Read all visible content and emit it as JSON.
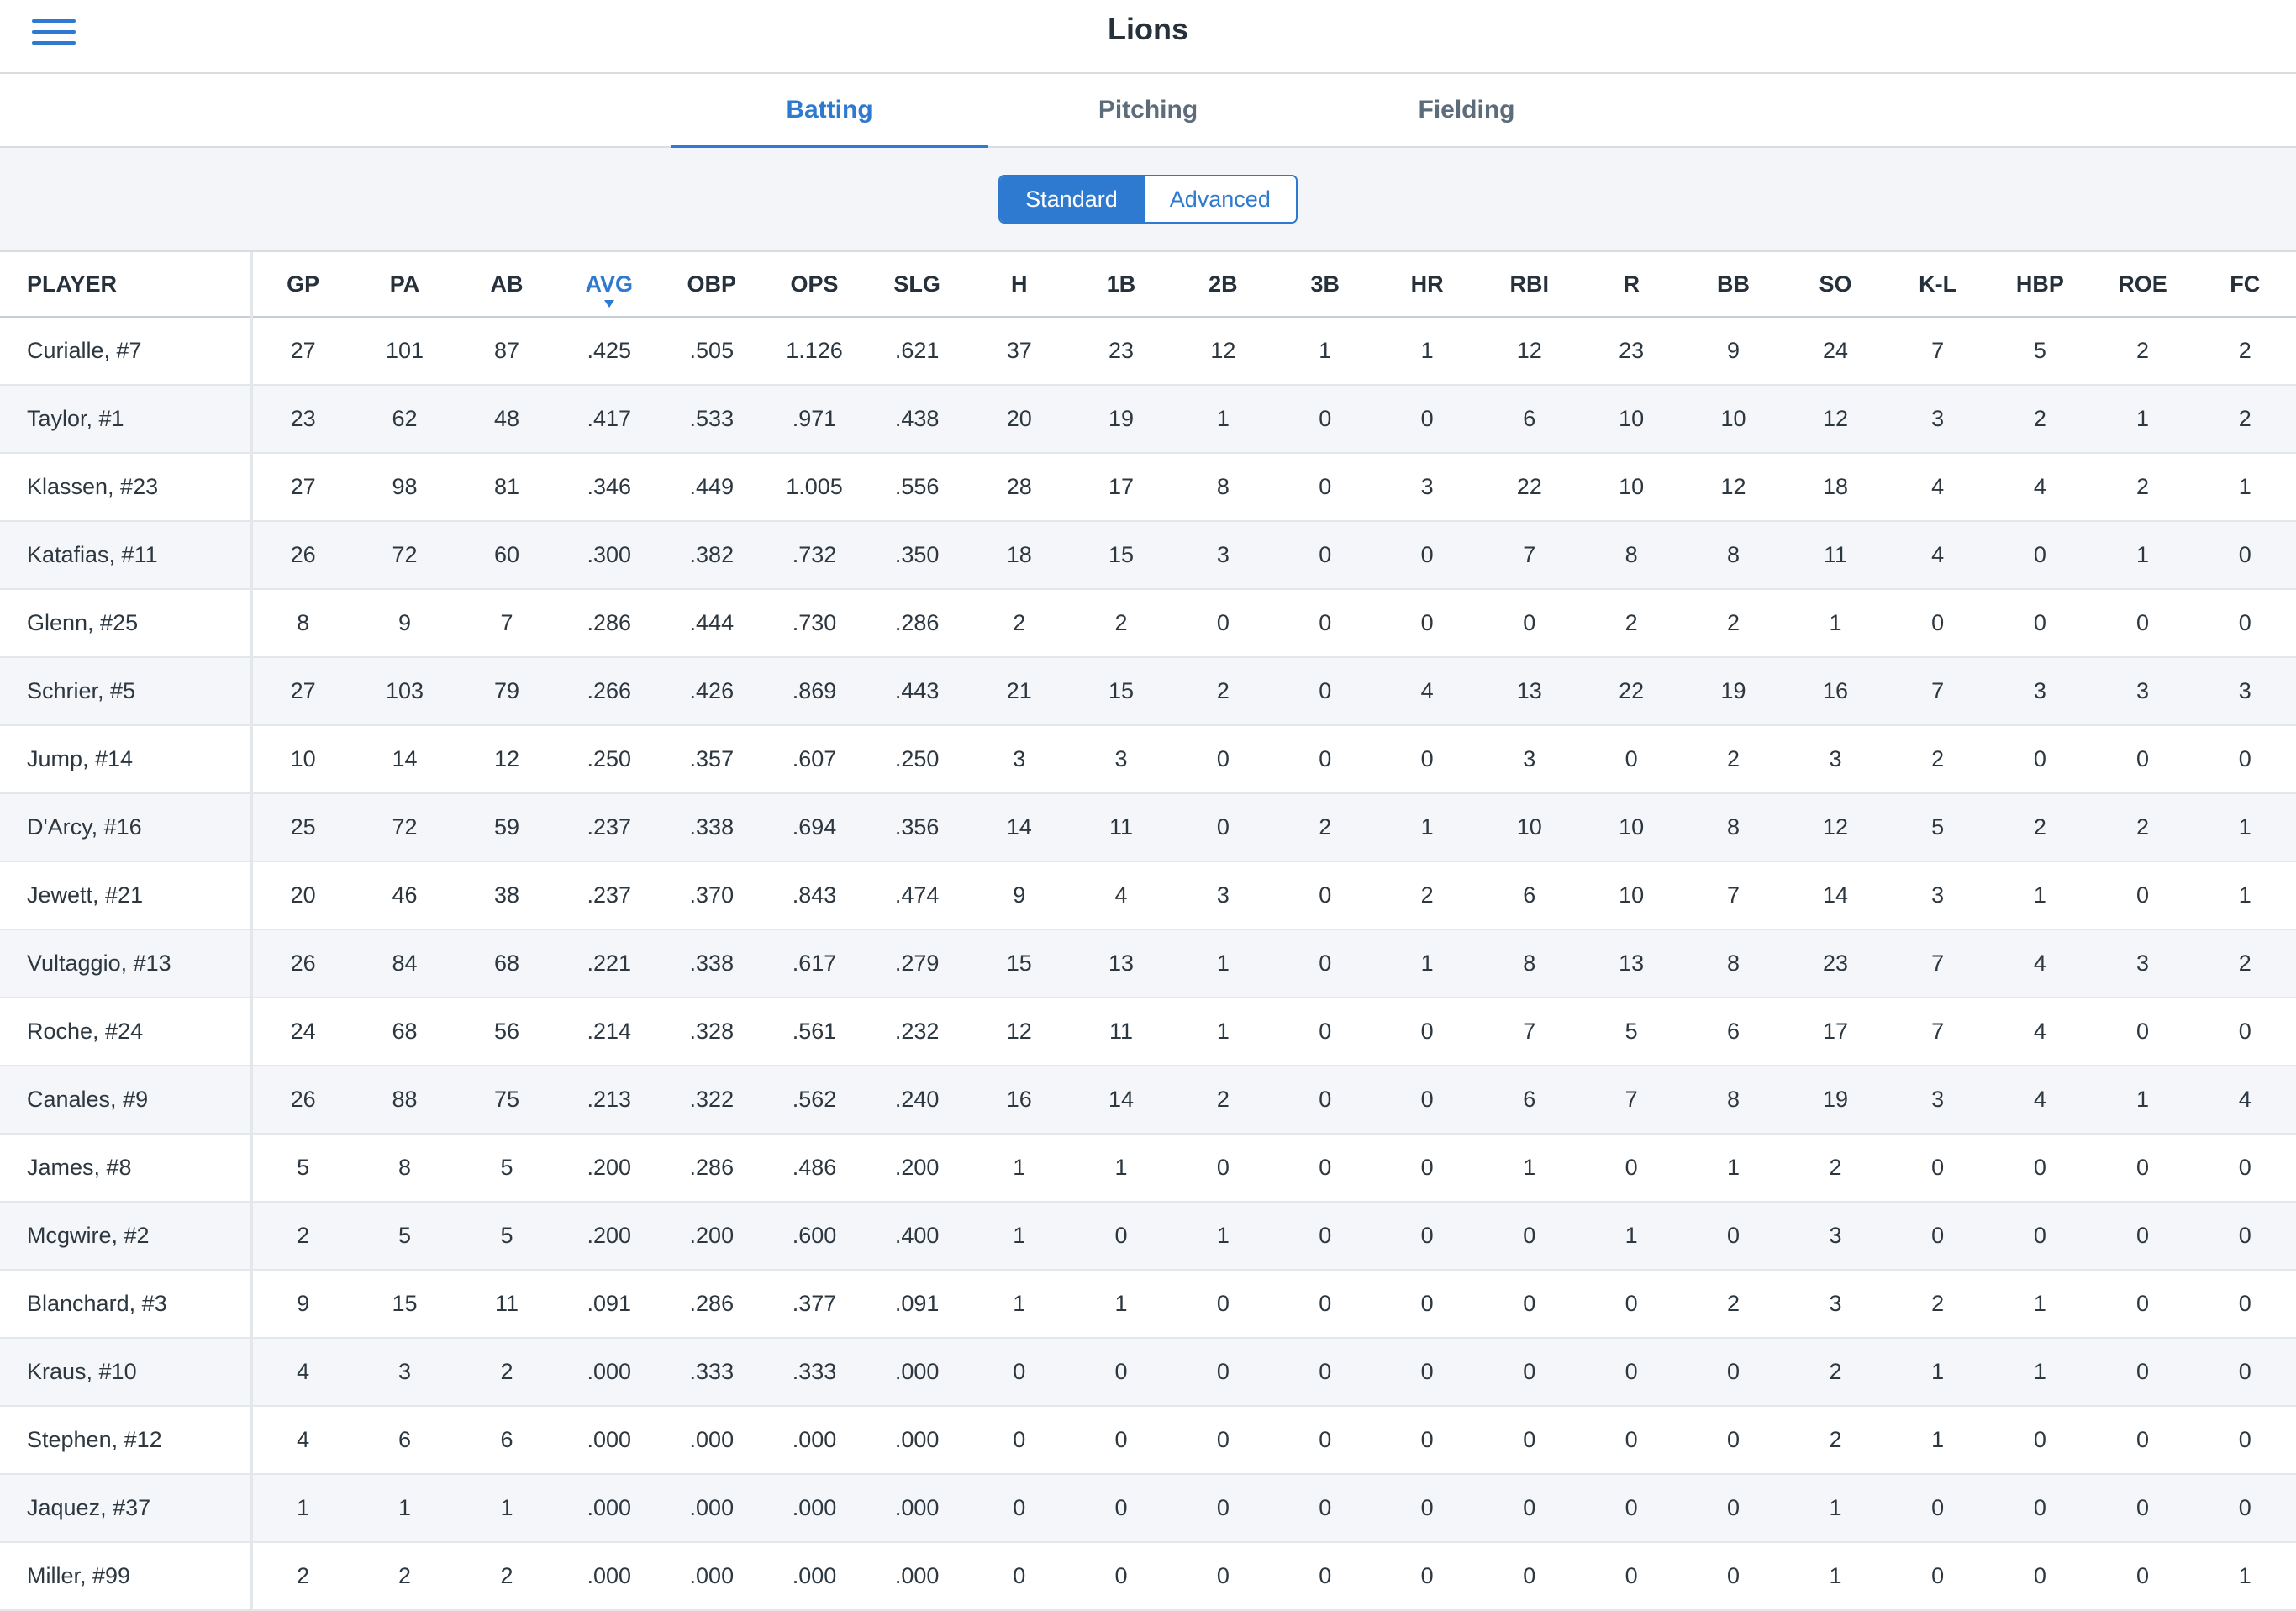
{
  "header": {
    "title": "Lions"
  },
  "tabs": [
    {
      "label": "Batting",
      "active": true
    },
    {
      "label": "Pitching",
      "active": false
    },
    {
      "label": "Fielding",
      "active": false
    }
  ],
  "toggle": {
    "standard": "Standard",
    "advanced": "Advanced",
    "selected": "Standard"
  },
  "colors": {
    "accent": "#2f7ad1",
    "header_text": "#26313b",
    "row_alt": "#f4f6f9"
  },
  "table": {
    "sorted_column": "AVG",
    "columns": [
      "PLAYER",
      "GP",
      "PA",
      "AB",
      "AVG",
      "OBP",
      "OPS",
      "SLG",
      "H",
      "1B",
      "2B",
      "3B",
      "HR",
      "RBI",
      "R",
      "BB",
      "SO",
      "K-L",
      "HBP",
      "ROE",
      "FC"
    ],
    "rows": [
      [
        "Curialle, #7",
        "27",
        "101",
        "87",
        ".425",
        ".505",
        "1.126",
        ".621",
        "37",
        "23",
        "12",
        "1",
        "1",
        "12",
        "23",
        "9",
        "24",
        "7",
        "5",
        "2",
        "2"
      ],
      [
        "Taylor, #1",
        "23",
        "62",
        "48",
        ".417",
        ".533",
        ".971",
        ".438",
        "20",
        "19",
        "1",
        "0",
        "0",
        "6",
        "10",
        "10",
        "12",
        "3",
        "2",
        "1",
        "2"
      ],
      [
        "Klassen, #23",
        "27",
        "98",
        "81",
        ".346",
        ".449",
        "1.005",
        ".556",
        "28",
        "17",
        "8",
        "0",
        "3",
        "22",
        "10",
        "12",
        "18",
        "4",
        "4",
        "2",
        "1"
      ],
      [
        "Katafias, #11",
        "26",
        "72",
        "60",
        ".300",
        ".382",
        ".732",
        ".350",
        "18",
        "15",
        "3",
        "0",
        "0",
        "7",
        "8",
        "8",
        "11",
        "4",
        "0",
        "1",
        "0"
      ],
      [
        "Glenn, #25",
        "8",
        "9",
        "7",
        ".286",
        ".444",
        ".730",
        ".286",
        "2",
        "2",
        "0",
        "0",
        "0",
        "0",
        "2",
        "2",
        "1",
        "0",
        "0",
        "0",
        "0"
      ],
      [
        "Schrier, #5",
        "27",
        "103",
        "79",
        ".266",
        ".426",
        ".869",
        ".443",
        "21",
        "15",
        "2",
        "0",
        "4",
        "13",
        "22",
        "19",
        "16",
        "7",
        "3",
        "3",
        "3"
      ],
      [
        "Jump, #14",
        "10",
        "14",
        "12",
        ".250",
        ".357",
        ".607",
        ".250",
        "3",
        "3",
        "0",
        "0",
        "0",
        "3",
        "0",
        "2",
        "3",
        "2",
        "0",
        "0",
        "0"
      ],
      [
        "D'Arcy, #16",
        "25",
        "72",
        "59",
        ".237",
        ".338",
        ".694",
        ".356",
        "14",
        "11",
        "0",
        "2",
        "1",
        "10",
        "10",
        "8",
        "12",
        "5",
        "2",
        "2",
        "1"
      ],
      [
        "Jewett, #21",
        "20",
        "46",
        "38",
        ".237",
        ".370",
        ".843",
        ".474",
        "9",
        "4",
        "3",
        "0",
        "2",
        "6",
        "10",
        "7",
        "14",
        "3",
        "1",
        "0",
        "1"
      ],
      [
        "Vultaggio, #13",
        "26",
        "84",
        "68",
        ".221",
        ".338",
        ".617",
        ".279",
        "15",
        "13",
        "1",
        "0",
        "1",
        "8",
        "13",
        "8",
        "23",
        "7",
        "4",
        "3",
        "2"
      ],
      [
        "Roche, #24",
        "24",
        "68",
        "56",
        ".214",
        ".328",
        ".561",
        ".232",
        "12",
        "11",
        "1",
        "0",
        "0",
        "7",
        "5",
        "6",
        "17",
        "7",
        "4",
        "0",
        "0"
      ],
      [
        "Canales, #9",
        "26",
        "88",
        "75",
        ".213",
        ".322",
        ".562",
        ".240",
        "16",
        "14",
        "2",
        "0",
        "0",
        "6",
        "7",
        "8",
        "19",
        "3",
        "4",
        "1",
        "4"
      ],
      [
        "James, #8",
        "5",
        "8",
        "5",
        ".200",
        ".286",
        ".486",
        ".200",
        "1",
        "1",
        "0",
        "0",
        "0",
        "1",
        "0",
        "1",
        "2",
        "0",
        "0",
        "0",
        "0"
      ],
      [
        "Mcgwire, #2",
        "2",
        "5",
        "5",
        ".200",
        ".200",
        ".600",
        ".400",
        "1",
        "0",
        "1",
        "0",
        "0",
        "0",
        "1",
        "0",
        "3",
        "0",
        "0",
        "0",
        "0"
      ],
      [
        "Blanchard, #3",
        "9",
        "15",
        "11",
        ".091",
        ".286",
        ".377",
        ".091",
        "1",
        "1",
        "0",
        "0",
        "0",
        "0",
        "0",
        "2",
        "3",
        "2",
        "1",
        "0",
        "0"
      ],
      [
        "Kraus, #10",
        "4",
        "3",
        "2",
        ".000",
        ".333",
        ".333",
        ".000",
        "0",
        "0",
        "0",
        "0",
        "0",
        "0",
        "0",
        "0",
        "2",
        "1",
        "1",
        "0",
        "0"
      ],
      [
        "Stephen, #12",
        "4",
        "6",
        "6",
        ".000",
        ".000",
        ".000",
        ".000",
        "0",
        "0",
        "0",
        "0",
        "0",
        "0",
        "0",
        "0",
        "2",
        "1",
        "0",
        "0",
        "0"
      ],
      [
        "Jaquez, #37",
        "1",
        "1",
        "1",
        ".000",
        ".000",
        ".000",
        ".000",
        "0",
        "0",
        "0",
        "0",
        "0",
        "0",
        "0",
        "0",
        "1",
        "0",
        "0",
        "0",
        "0"
      ],
      [
        "Miller, #99",
        "2",
        "2",
        "2",
        ".000",
        ".000",
        ".000",
        ".000",
        "0",
        "0",
        "0",
        "0",
        "0",
        "0",
        "0",
        "0",
        "1",
        "0",
        "0",
        "0",
        "1"
      ]
    ]
  }
}
